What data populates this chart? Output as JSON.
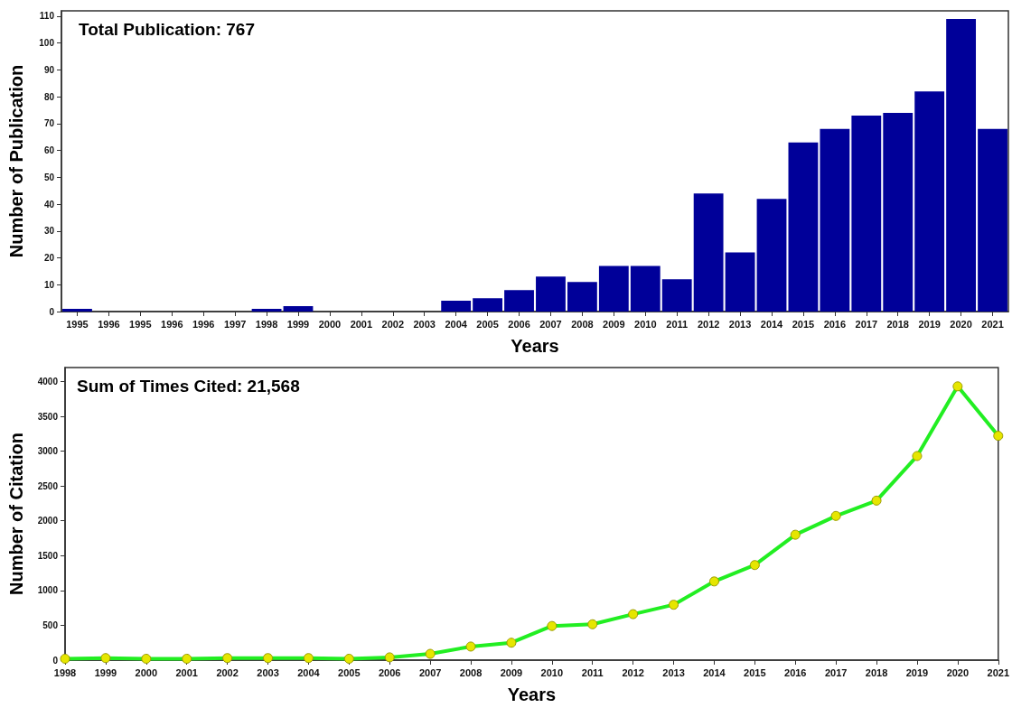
{
  "chart_data": [
    {
      "type": "bar",
      "title": "Total Publication: 767",
      "xlabel": "Years",
      "ylabel": "Number of Publication",
      "categories": [
        "1995",
        "1996",
        "1995",
        "1996",
        "1996",
        "1997",
        "1998",
        "1999",
        "2000",
        "2001",
        "2002",
        "2003",
        "2004",
        "2005",
        "2006",
        "2007",
        "2008",
        "2009",
        "2010",
        "2011",
        "2012",
        "2013",
        "2014",
        "2015",
        "2016",
        "2017",
        "2018",
        "2019",
        "2020",
        "2021"
      ],
      "series": [
        {
          "color": "#000099",
          "values": [
            1,
            0,
            0,
            0,
            0,
            0,
            1,
            2,
            0,
            0,
            0,
            0,
            4,
            5,
            8,
            13,
            11,
            17,
            17,
            12,
            44,
            22,
            42,
            63,
            68,
            73,
            74,
            82,
            109,
            68
          ]
        }
      ],
      "ylim": [
        0,
        112
      ],
      "yticks": [
        0,
        10,
        20,
        30,
        40,
        50,
        60,
        70,
        80,
        90,
        100,
        110
      ],
      "grid": false
    },
    {
      "type": "line",
      "title": "Sum of Times Cited: 21,568",
      "xlabel": "Years",
      "ylabel": "Number of Citation",
      "categories": [
        "1998",
        "1999",
        "2000",
        "2001",
        "2002",
        "2003",
        "2004",
        "2005",
        "2006",
        "2007",
        "2008",
        "2009",
        "2010",
        "2011",
        "2012",
        "2013",
        "2014",
        "2015",
        "2016",
        "2017",
        "2018",
        "2019",
        "2020",
        "2021"
      ],
      "series": [
        {
          "color": "#22ee22",
          "values": [
            20,
            30,
            20,
            20,
            30,
            30,
            30,
            20,
            40,
            90,
            195,
            250,
            490,
            515,
            660,
            795,
            1130,
            1365,
            1800,
            2070,
            2290,
            2930,
            3930,
            3220
          ]
        }
      ],
      "ylim": [
        0,
        4200
      ],
      "yticks": [
        0,
        500,
        1000,
        1500,
        2000,
        2500,
        3000,
        3500,
        4000
      ],
      "grid": false,
      "marker": "circle",
      "line_style": "solid"
    }
  ]
}
